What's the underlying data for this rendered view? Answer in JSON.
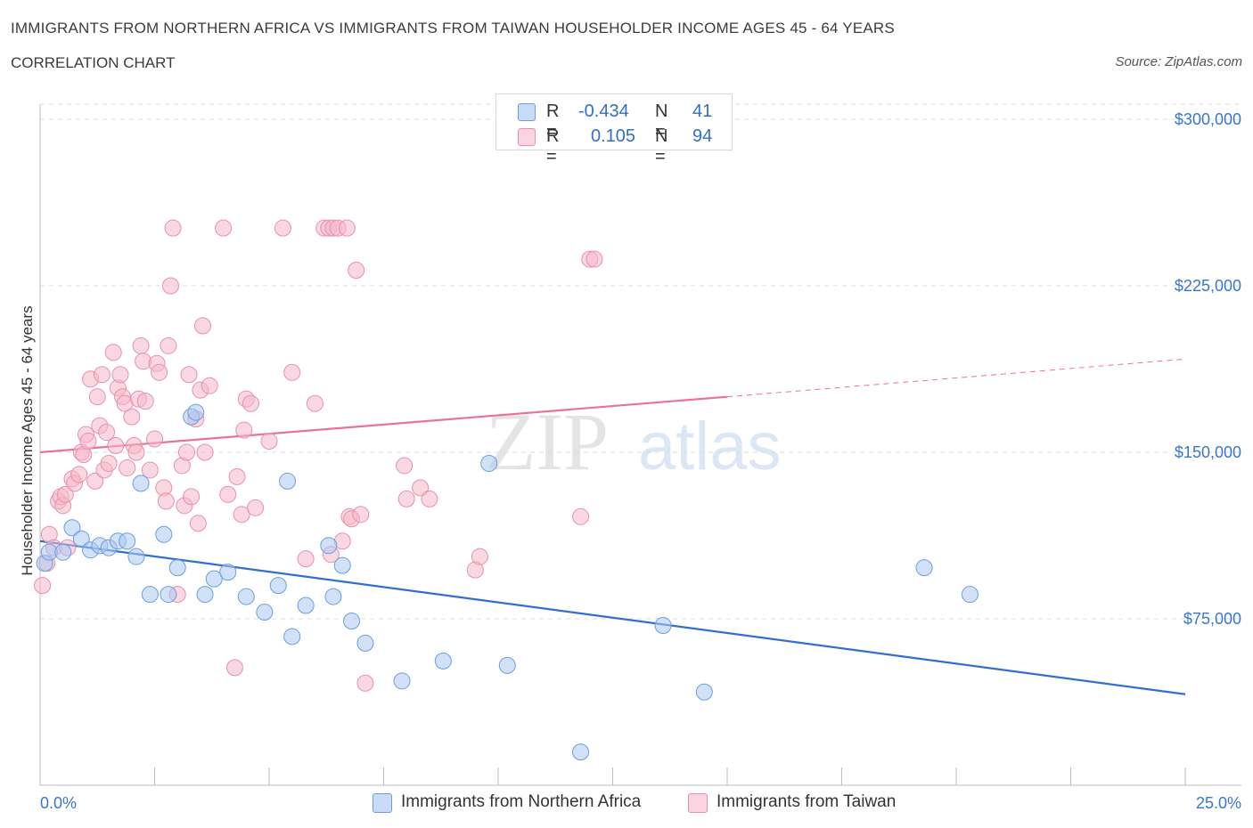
{
  "header": {
    "title": "IMMIGRANTS FROM NORTHERN AFRICA VS IMMIGRANTS FROM TAIWAN HOUSEHOLDER INCOME AGES 45 - 64 YEARS",
    "subtitle": "CORRELATION CHART",
    "source": "Source: ZipAtlas.com"
  },
  "stats_legend": {
    "rows": [
      {
        "r_label": "R =",
        "r_value": "-0.434",
        "n_label": "N =",
        "n_value": "41",
        "color": "#a9c8f3"
      },
      {
        "r_label": "R =",
        "r_value": "0.105",
        "n_label": "N =",
        "n_value": "94",
        "color": "#f5b8cb"
      }
    ]
  },
  "watermark": {
    "zip": "ZIP",
    "atlas": "atlas"
  },
  "colors": {
    "blue_fill": "#a9c8f3",
    "blue_stroke": "#6a9ee0",
    "blue_line": "#2f6fd0",
    "pink_fill": "#f5b8cb",
    "pink_stroke": "#e890ad",
    "pink_line": "#e8739a",
    "axis_text": "#3a76cc",
    "grid": "#dcdcdc"
  },
  "chart_data": {
    "type": "scatter",
    "xlabel": "",
    "ylabel": "Householder Income Ages 45 - 64 years",
    "xlim": [
      0,
      25
    ],
    "ylim": [
      0,
      300000
    ],
    "x_tick_labels": [
      "0.0%",
      "25.0%"
    ],
    "y_ticks": [
      75000,
      150000,
      225000,
      300000
    ],
    "y_tick_labels": [
      "$75,000",
      "$150,000",
      "$225,000",
      "$300,000"
    ],
    "legend": [
      "Immigrants from Northern Africa",
      "Immigrants from Taiwan"
    ],
    "series": [
      {
        "name": "Immigrants from Northern Africa",
        "color": "#a9c8f3",
        "points": [
          [
            0.1,
            100000
          ],
          [
            0.2,
            105000
          ],
          [
            0.5,
            105000
          ],
          [
            0.7,
            116000
          ],
          [
            0.9,
            111000
          ],
          [
            1.1,
            106000
          ],
          [
            1.3,
            108000
          ],
          [
            1.5,
            107000
          ],
          [
            1.7,
            110000
          ],
          [
            1.9,
            110000
          ],
          [
            2.1,
            103000
          ],
          [
            2.2,
            136000
          ],
          [
            2.4,
            86000
          ],
          [
            2.7,
            113000
          ],
          [
            2.8,
            86000
          ],
          [
            3.0,
            98000
          ],
          [
            3.3,
            166000
          ],
          [
            3.4,
            168000
          ],
          [
            3.6,
            86000
          ],
          [
            3.8,
            93000
          ],
          [
            4.1,
            96000
          ],
          [
            4.5,
            85000
          ],
          [
            4.9,
            78000
          ],
          [
            5.2,
            90000
          ],
          [
            5.4,
            137000
          ],
          [
            5.5,
            67000
          ],
          [
            5.8,
            81000
          ],
          [
            6.3,
            108000
          ],
          [
            6.4,
            85000
          ],
          [
            6.6,
            99000
          ],
          [
            6.8,
            74000
          ],
          [
            7.1,
            64000
          ],
          [
            7.9,
            47000
          ],
          [
            8.8,
            56000
          ],
          [
            9.8,
            145000
          ],
          [
            10.2,
            54000
          ],
          [
            11.8,
            15000
          ],
          [
            13.6,
            72000
          ],
          [
            14.5,
            42000
          ],
          [
            19.3,
            98000
          ],
          [
            20.3,
            86000
          ]
        ]
      },
      {
        "name": "Immigrants from Taiwan",
        "color": "#f5b8cb",
        "points": [
          [
            0.05,
            90000
          ],
          [
            0.15,
            100000
          ],
          [
            0.2,
            113000
          ],
          [
            0.3,
            107000
          ],
          [
            0.4,
            128000
          ],
          [
            0.45,
            130000
          ],
          [
            0.5,
            126000
          ],
          [
            0.55,
            131000
          ],
          [
            0.6,
            107000
          ],
          [
            0.7,
            138000
          ],
          [
            0.75,
            136000
          ],
          [
            0.85,
            140000
          ],
          [
            0.9,
            150000
          ],
          [
            0.95,
            149000
          ],
          [
            1.0,
            158000
          ],
          [
            1.05,
            155000
          ],
          [
            1.1,
            183000
          ],
          [
            1.2,
            137000
          ],
          [
            1.25,
            175000
          ],
          [
            1.3,
            162000
          ],
          [
            1.35,
            185000
          ],
          [
            1.4,
            142000
          ],
          [
            1.45,
            159000
          ],
          [
            1.5,
            145000
          ],
          [
            1.6,
            195000
          ],
          [
            1.65,
            153000
          ],
          [
            1.7,
            179000
          ],
          [
            1.75,
            185000
          ],
          [
            1.8,
            175000
          ],
          [
            1.85,
            172000
          ],
          [
            1.9,
            143000
          ],
          [
            2.0,
            166000
          ],
          [
            2.05,
            153000
          ],
          [
            2.1,
            150000
          ],
          [
            2.15,
            174000
          ],
          [
            2.2,
            198000
          ],
          [
            2.25,
            191000
          ],
          [
            2.3,
            173000
          ],
          [
            2.4,
            142000
          ],
          [
            2.5,
            156000
          ],
          [
            2.55,
            190000
          ],
          [
            2.6,
            186000
          ],
          [
            2.7,
            134000
          ],
          [
            2.75,
            128000
          ],
          [
            2.8,
            198000
          ],
          [
            2.85,
            225000
          ],
          [
            2.9,
            251000
          ],
          [
            3.0,
            86000
          ],
          [
            3.1,
            144000
          ],
          [
            3.15,
            126000
          ],
          [
            3.2,
            150000
          ],
          [
            3.25,
            185000
          ],
          [
            3.3,
            130000
          ],
          [
            3.4,
            165000
          ],
          [
            3.45,
            118000
          ],
          [
            3.5,
            178000
          ],
          [
            3.55,
            207000
          ],
          [
            3.6,
            150000
          ],
          [
            3.7,
            180000
          ],
          [
            4.0,
            251000
          ],
          [
            4.1,
            131000
          ],
          [
            4.25,
            53000
          ],
          [
            4.3,
            139000
          ],
          [
            4.4,
            122000
          ],
          [
            4.45,
            160000
          ],
          [
            4.5,
            174000
          ],
          [
            4.6,
            172000
          ],
          [
            4.7,
            125000
          ],
          [
            5.0,
            155000
          ],
          [
            5.3,
            251000
          ],
          [
            5.5,
            186000
          ],
          [
            5.8,
            102000
          ],
          [
            6.0,
            172000
          ],
          [
            6.2,
            251000
          ],
          [
            6.3,
            251000
          ],
          [
            6.35,
            104000
          ],
          [
            6.4,
            251000
          ],
          [
            6.5,
            251000
          ],
          [
            6.6,
            110000
          ],
          [
            6.7,
            251000
          ],
          [
            6.75,
            121000
          ],
          [
            6.8,
            120000
          ],
          [
            6.9,
            232000
          ],
          [
            7.0,
            122000
          ],
          [
            7.1,
            46000
          ],
          [
            7.95,
            144000
          ],
          [
            8.0,
            129000
          ],
          [
            8.3,
            134000
          ],
          [
            8.5,
            129000
          ],
          [
            9.5,
            97000
          ],
          [
            9.6,
            103000
          ],
          [
            11.8,
            121000
          ],
          [
            12.0,
            237000
          ],
          [
            12.1,
            237000
          ]
        ]
      }
    ],
    "trend_lines": [
      {
        "series": "Immigrants from Northern Africa",
        "from": [
          0,
          110000
        ],
        "to": [
          25,
          41000
        ],
        "style": "solid"
      },
      {
        "series": "Immigrants from Taiwan",
        "from": [
          0,
          150000
        ],
        "to": [
          15,
          175000
        ],
        "style": "solid"
      },
      {
        "series": "Immigrants from Taiwan",
        "from": [
          15,
          175000
        ],
        "to": [
          25,
          192000
        ],
        "style": "dashed"
      }
    ],
    "grid": true,
    "legend_position": "top-center and bottom"
  },
  "footer": {
    "x_min_label": "0.0%",
    "x_max_label": "25.0%",
    "legend_items": [
      {
        "label": "Immigrants from Northern Africa",
        "color": "#a9c8f3"
      },
      {
        "label": "Immigrants from Taiwan",
        "color": "#f5b8cb"
      }
    ]
  }
}
